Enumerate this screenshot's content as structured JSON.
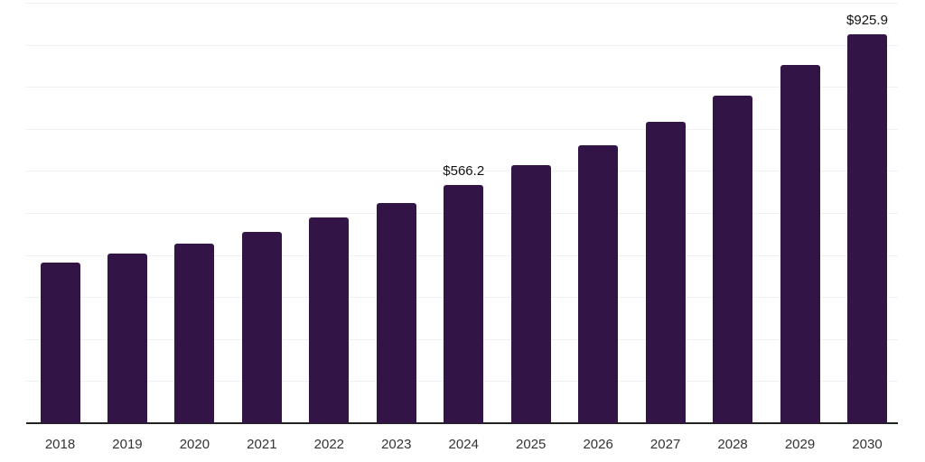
{
  "chart_data": {
    "type": "bar",
    "title": "",
    "xlabel": "",
    "ylabel": "",
    "categories": [
      "2018",
      "2019",
      "2020",
      "2021",
      "2022",
      "2023",
      "2024",
      "2025",
      "2026",
      "2027",
      "2028",
      "2029",
      "2030"
    ],
    "values": [
      381,
      403,
      427,
      456,
      489,
      524,
      566.2,
      613,
      661,
      717,
      780,
      851,
      925.9
    ],
    "point_labels": [
      "",
      "",
      "",
      "",
      "",
      "",
      "$566.2",
      "",
      "",
      "",
      "",
      "",
      "$925.9"
    ],
    "ylim": [
      0,
      1000
    ],
    "gridline_step": 100,
    "grid": true,
    "legend_position": "none",
    "y_tick_labels_visible": false,
    "colors": {
      "bar": "#321447",
      "gridline": "#f1f1f5",
      "axis_line": "#222222",
      "tick_label": "#333333",
      "data_label": "#111111",
      "background": "#ffffff"
    }
  }
}
